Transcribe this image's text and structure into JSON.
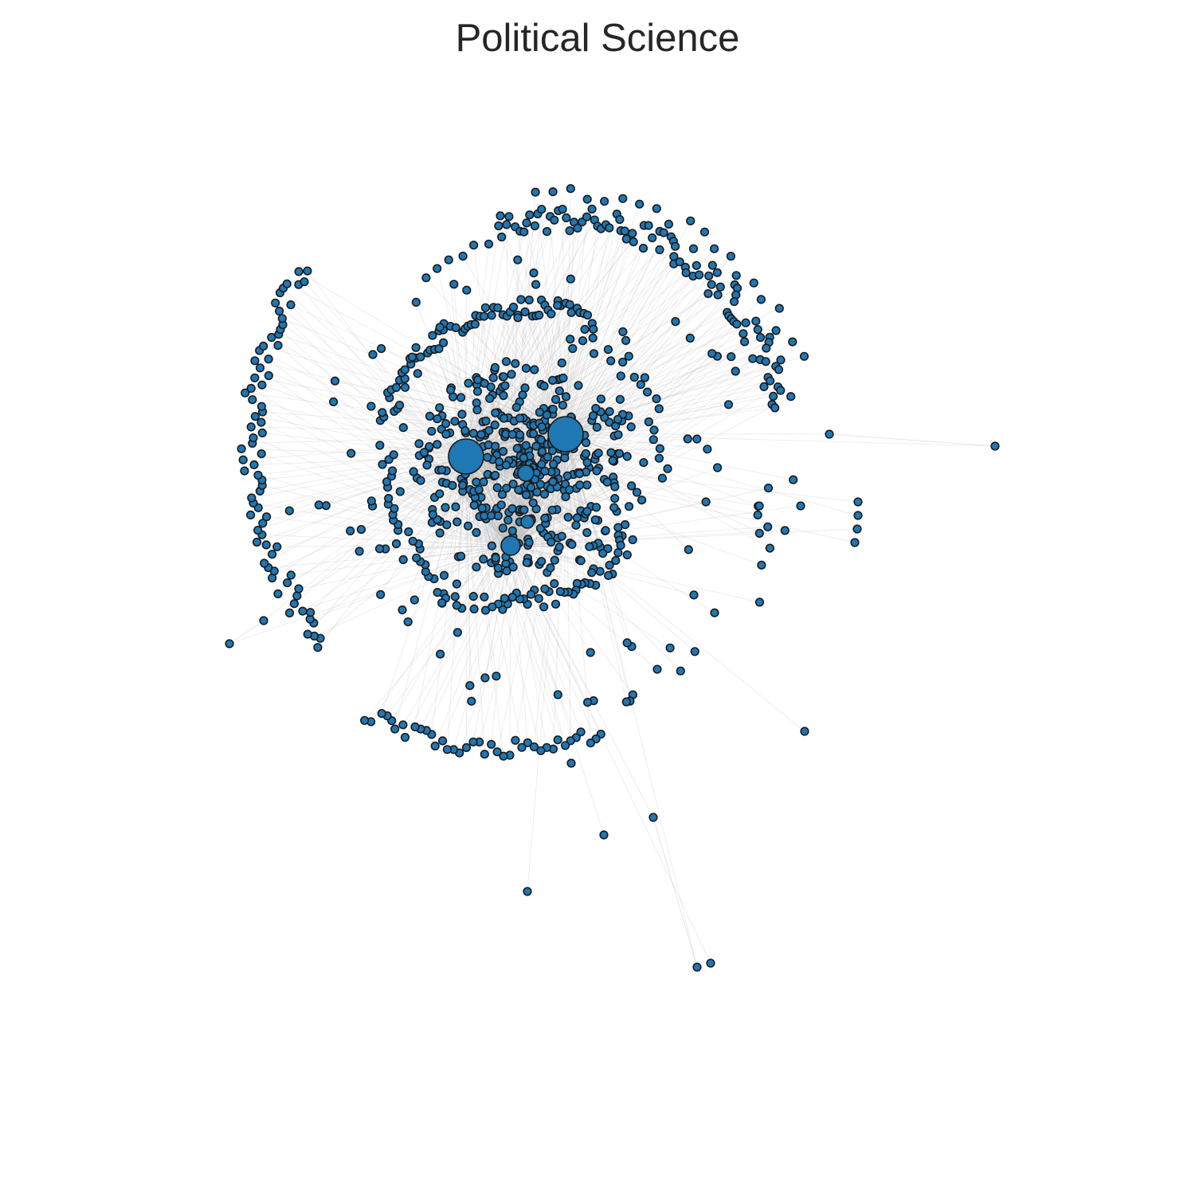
{
  "figure": {
    "title": "Political Science"
  },
  "style": {
    "node_fill": "#1f77b4",
    "node_stroke": "#1a1a1a",
    "edge_color": "#bdbdbd",
    "background": "#ffffff"
  },
  "network": {
    "layout": "force-directed",
    "description_counts": {
      "approx_nodes": 900
    },
    "hubs": [
      {
        "id": "hub-1",
        "relative_size": 1.0
      },
      {
        "id": "hub-2",
        "relative_size": 0.95
      },
      {
        "id": "hub-3",
        "relative_size": 0.55
      },
      {
        "id": "hub-4",
        "relative_size": 0.4
      },
      {
        "id": "hub-5",
        "relative_size": 0.35
      }
    ]
  }
}
